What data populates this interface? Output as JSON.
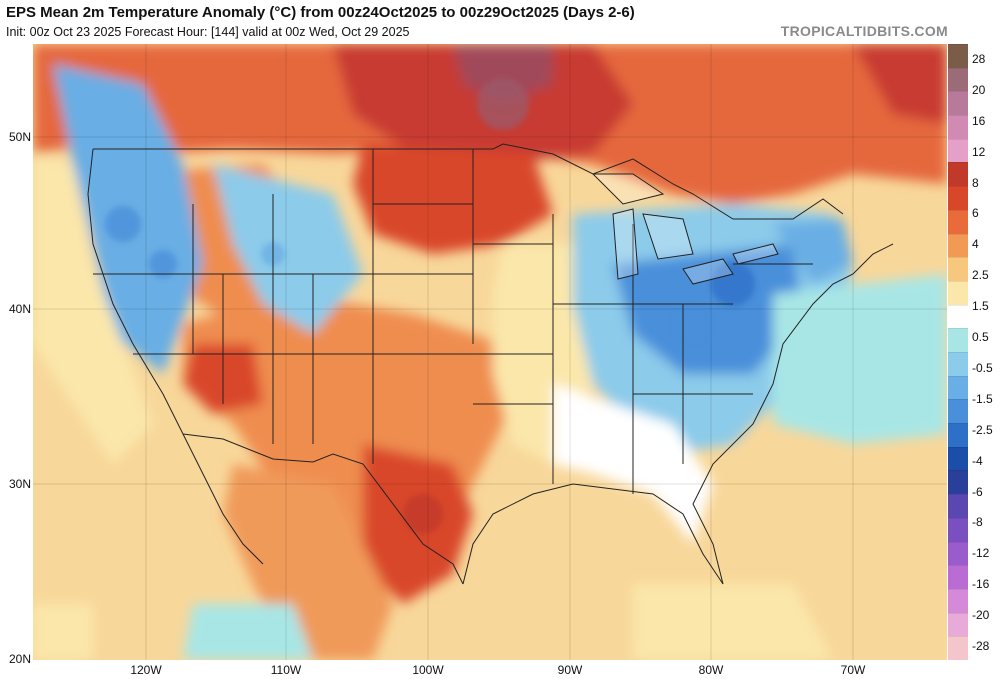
{
  "header": {
    "title": "EPS Mean 2m Temperature Anomaly (°C) from 00z24Oct2025 to 00z29Oct2025 (Days 2-6)",
    "subtitle": "Init: 00z Oct 23 2025   Forecast Hour: [144]   valid at 00z Wed, Oct 29 2025",
    "brand": "TROPICALTIDBITS.COM"
  },
  "axes": {
    "latitudes": [
      "50N",
      "40N",
      "30N",
      "20N"
    ],
    "longitudes": [
      "120W",
      "110W",
      "100W",
      "90W",
      "80W",
      "70W"
    ]
  },
  "colorbar": {
    "labels": [
      "28",
      "20",
      "16",
      "12",
      "8",
      "6",
      "4",
      "2.5",
      "1.5",
      "0.5",
      "-0.5",
      "-1.5",
      "-2.5",
      "-4",
      "-6",
      "-8",
      "-12",
      "-16",
      "-20",
      "-28"
    ],
    "colors": [
      "#7a5c48",
      "#9c6b78",
      "#b87a9a",
      "#d08ab4",
      "#e4a0c8",
      "#c0392b",
      "#d9472b",
      "#e96a3a",
      "#f29a55",
      "#f8c77e",
      "#fbe7aa",
      "#ffffff",
      "#a8e6e6",
      "#8ccbea",
      "#69aee4",
      "#4a8fda",
      "#2e6fc8",
      "#1b4ea8",
      "#2a3f9a",
      "#5a48b0",
      "#7a4fc0",
      "#9a5ccc",
      "#b86cd4",
      "#d48ad8",
      "#e8aad8",
      "#f4c6cc"
    ]
  },
  "map": {
    "background_color": "#f8d79a",
    "land_warm_color": "#f09a5a",
    "land_hot_color": "#d9472b",
    "land_very_hot_color": "#c0392b",
    "cold_color": "#8cc6ea",
    "cold_deep_color": "#4a8fda",
    "neutral_color": "#ffffff",
    "border_color": "#222222"
  }
}
